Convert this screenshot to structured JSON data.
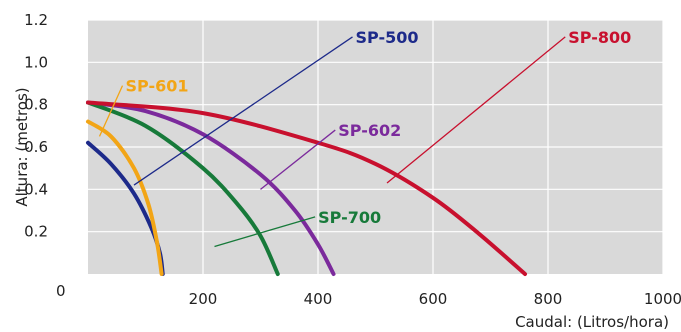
{
  "chart_data": {
    "type": "line",
    "title": "",
    "xlabel": "Caudal: (Litros/hora)",
    "ylabel": "Altura: (metros)",
    "xlim": [
      0,
      1000
    ],
    "ylim": [
      0,
      1.2
    ],
    "x_ticks": [
      "200",
      "400",
      "600",
      "800",
      "1000"
    ],
    "y_ticks": [
      "0.2",
      "0.4",
      "0.6",
      "0.8",
      "1.0",
      "1.2"
    ],
    "origin_label": "0",
    "grid": true,
    "background": "#d9d9d9",
    "series": [
      {
        "name": "SP-500",
        "color": "#1d2a8a",
        "label_color": "#1d2a8a",
        "x": [
          0,
          40,
          80,
          110,
          125,
          130
        ],
        "y": [
          0.62,
          0.52,
          0.38,
          0.22,
          0.1,
          0.0
        ]
      },
      {
        "name": "SP-601",
        "color": "#f2a516",
        "label_color": "#f2a516",
        "x": [
          0,
          40,
          80,
          105,
          120,
          128
        ],
        "y": [
          0.72,
          0.65,
          0.5,
          0.33,
          0.15,
          0.0
        ]
      },
      {
        "name": "SP-602",
        "color": "#7b2a9c",
        "label_color": "#7b2a9c",
        "x": [
          0,
          100,
          200,
          300,
          360,
          400,
          427
        ],
        "y": [
          0.81,
          0.77,
          0.66,
          0.47,
          0.3,
          0.14,
          0.0
        ]
      },
      {
        "name": "SP-700",
        "color": "#177a3a",
        "label_color": "#177a3a",
        "x": [
          0,
          100,
          200,
          260,
          300,
          330
        ],
        "y": [
          0.81,
          0.7,
          0.5,
          0.33,
          0.18,
          0.0
        ]
      },
      {
        "name": "SP-800",
        "color": "#c8102e",
        "label_color": "#c8102e",
        "x": [
          0,
          200,
          400,
          500,
          600,
          680,
          760
        ],
        "y": [
          0.81,
          0.76,
          0.62,
          0.52,
          0.36,
          0.19,
          0.0
        ]
      }
    ],
    "annotations": [
      {
        "series": "SP-500",
        "text": "SP-500",
        "anchor": [
          80,
          0.42
        ],
        "label_at": [
          460,
          1.12
        ]
      },
      {
        "series": "SP-601",
        "text": "SP-601",
        "anchor": [
          20,
          0.65
        ],
        "label_at": [
          60,
          0.89
        ]
      },
      {
        "series": "SP-602",
        "text": "SP-602",
        "anchor": [
          300,
          0.4
        ],
        "label_at": [
          430,
          0.68
        ]
      },
      {
        "series": "SP-700",
        "text": "SP-700",
        "anchor": [
          220,
          0.13
        ],
        "label_at": [
          395,
          0.27
        ]
      },
      {
        "series": "SP-800",
        "text": "SP-800",
        "anchor": [
          520,
          0.43
        ],
        "label_at": [
          830,
          1.12
        ]
      }
    ]
  }
}
